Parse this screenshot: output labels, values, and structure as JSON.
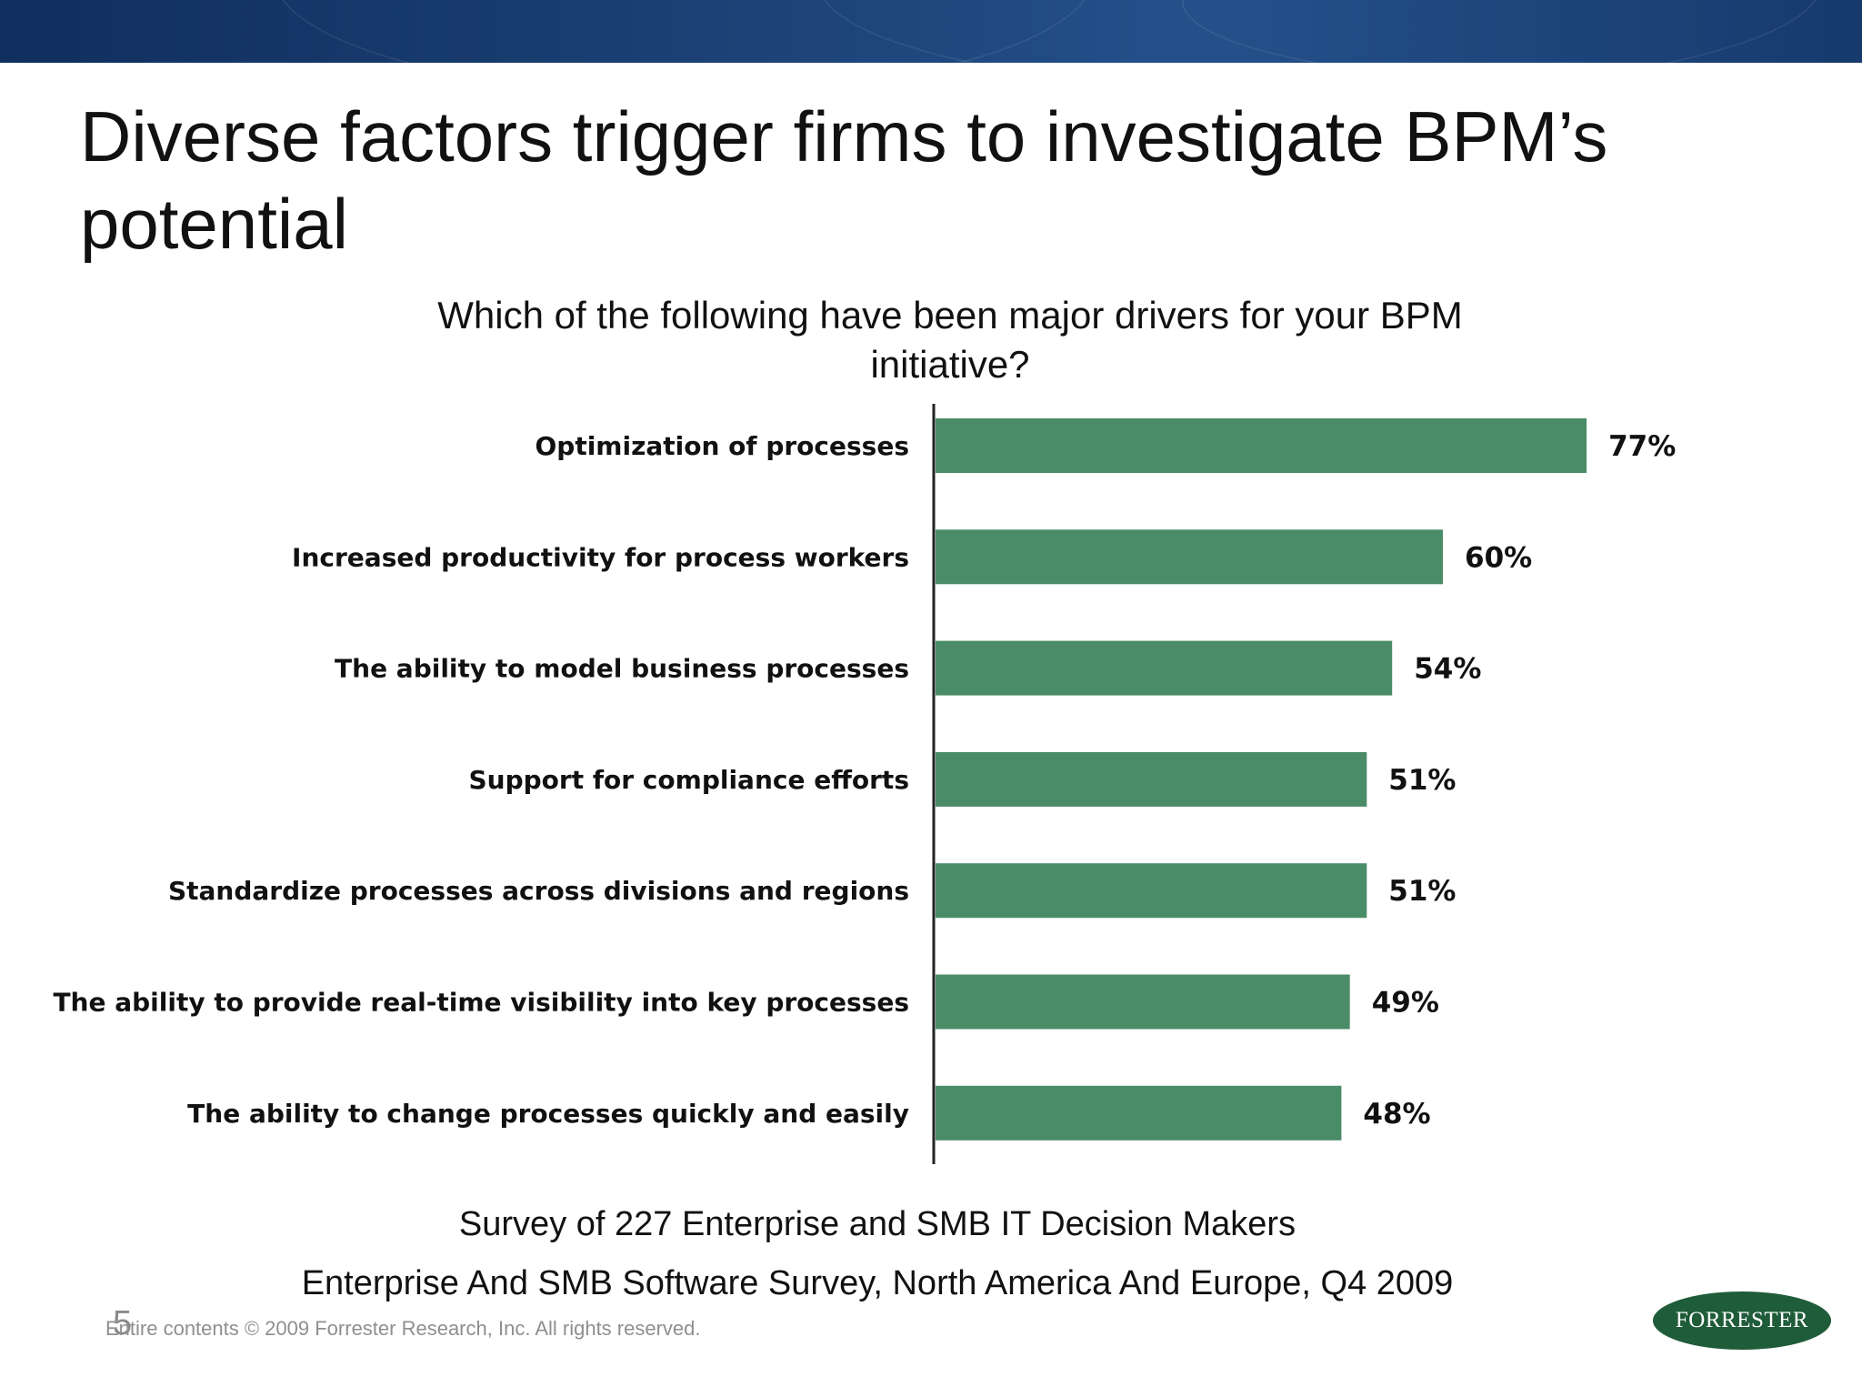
{
  "slide": {
    "title": "Diverse factors trigger firms to investigate BPM’s potential",
    "question": "Which of the following have been major drivers for your BPM initiative?",
    "survey_line1": "Survey of  227 Enterprise and SMB IT Decision Makers",
    "survey_line2": "Enterprise And SMB Software Survey, North America And Europe, Q4 2009",
    "page_number": "5",
    "copyright": "Entire contents © 2009  Forrester Research, Inc. All rights reserved.",
    "logo_text": "FORRESTER"
  },
  "colors": {
    "bar": "#4b8c68",
    "banner": "#1b3f73",
    "logo": "#1f5c3a"
  },
  "chart_data": {
    "type": "bar",
    "orientation": "horizontal",
    "title": "",
    "xlabel": "",
    "ylabel": "",
    "categories": [
      "Optimization of processes",
      "Increased productivity for process workers",
      "The ability to model business processes",
      "Support for compliance efforts",
      "Standardize processes across divisions and regions",
      "The ability to provide real-time visibility into key processes",
      "The ability to change processes quickly and easily"
    ],
    "values": [
      77,
      60,
      54,
      51,
      51,
      49,
      48
    ],
    "value_labels": [
      "77%",
      "60%",
      "54%",
      "51%",
      "51%",
      "49%",
      "48%"
    ],
    "xlim": [
      0,
      100
    ],
    "grid": false,
    "legend": "none"
  }
}
